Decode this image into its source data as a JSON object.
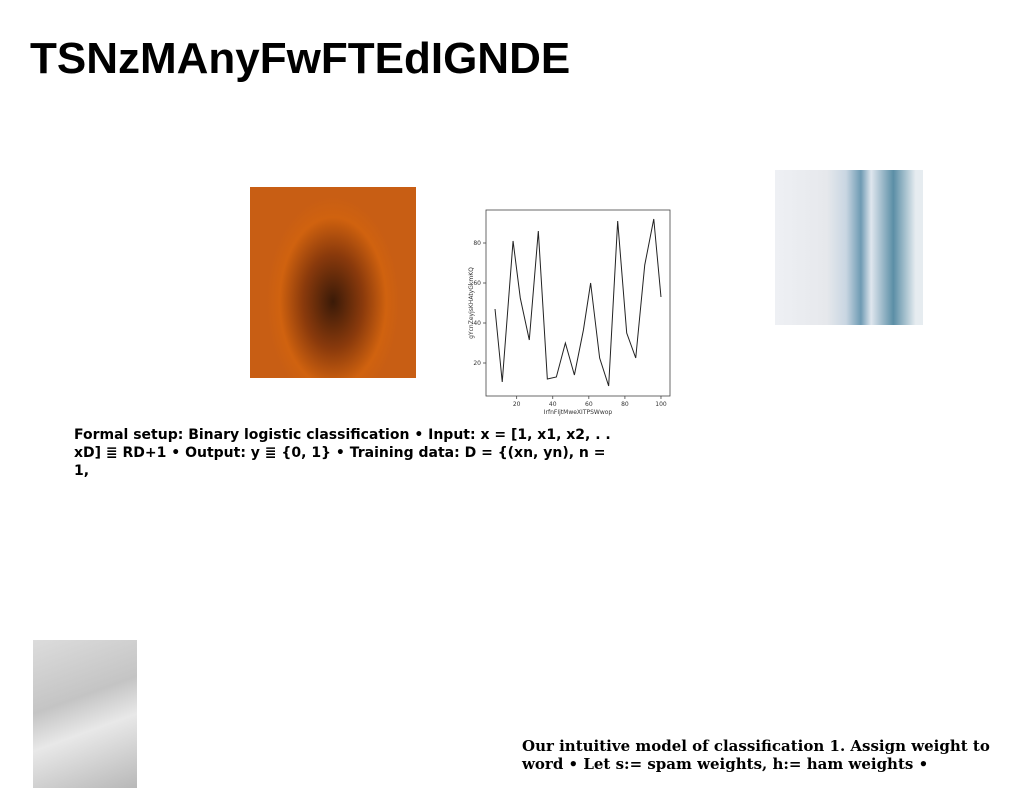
{
  "title": "TSNzMAnyFwFTEdIGNDE",
  "texts": [
    "Formal setup: Binary logistic classification • Input: x = [1, x1, x2, . . xD] ≣ RD+1 • Output: y ≣ {0, 1} • Training data: D = {(xn, yn), n = 1,",
    "Our intuitive model of classification 1. Assign weight to word • Let s:= spam weights, h:= ham weights •"
  ],
  "chart_data": {
    "type": "line",
    "xlabel": "IrfnFIjtMweXITPSWwop",
    "ylabel": "gYcnZeyjsKHAtyGkmKQ",
    "x": [
      8,
      12,
      18,
      22,
      27,
      32,
      37,
      42,
      47,
      52,
      57,
      61,
      66,
      71,
      76,
      81,
      86,
      91,
      96,
      100
    ],
    "series": [
      {
        "color": "#222222",
        "values": [
          47,
          10.5,
          81,
          52.5,
          31.5,
          86,
          12,
          13,
          30,
          14,
          36.5,
          60,
          22.5,
          8.5,
          91,
          35,
          22.5,
          69,
          92,
          53
        ]
      }
    ],
    "xlim": [
      3,
      105
    ],
    "ylim": [
      3.5,
      96.5
    ],
    "xticks": [
      20,
      40,
      60,
      80,
      100
    ],
    "yticks": [
      20,
      40,
      60,
      80
    ]
  }
}
